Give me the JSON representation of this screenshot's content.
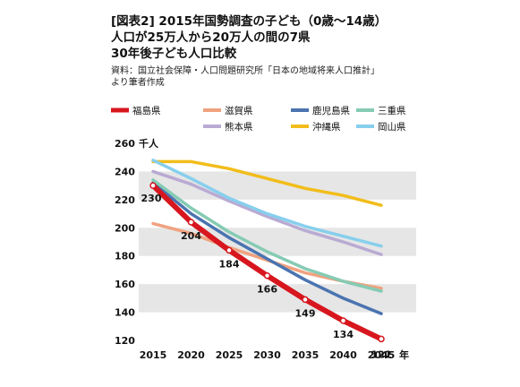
{
  "header": {
    "title_lines": [
      "[図表2] 2015年国勢調査の子ども（0歳〜14歳）",
      "人口が25万人から20万人の間の7県",
      "30年後子ども人口比較"
    ],
    "source_lines": [
      "資料：国立社会保障・人口問題研究所「日本の地域将来人口推計」",
      "より筆者作成"
    ]
  },
  "chart_data": {
    "type": "line",
    "x": [
      2015,
      2020,
      2025,
      2030,
      2035,
      2040,
      2045
    ],
    "x_unit": "年",
    "y_unit": "千人",
    "ylim": [
      120,
      260
    ],
    "yticks": [
      120,
      140,
      160,
      180,
      200,
      220,
      240,
      260
    ],
    "grid": "alternating horizontal bands",
    "legend_position": "top",
    "series": [
      {
        "name": "福島県",
        "color": "#d7161e",
        "values": [
          230,
          204,
          184,
          166,
          149,
          134,
          121
        ],
        "labeled": true
      },
      {
        "name": "滋賀県",
        "color": "#f0a27f",
        "values": [
          203,
          196,
          186,
          177,
          168,
          162,
          157
        ]
      },
      {
        "name": "鹿児島県",
        "color": "#4a74b0",
        "values": [
          232,
          210,
          193,
          178,
          163,
          150,
          139
        ]
      },
      {
        "name": "三重県",
        "color": "#86cbb4",
        "values": [
          234,
          214,
          197,
          183,
          171,
          162,
          155
        ]
      },
      {
        "name": "熊本県",
        "color": "#b9aad3",
        "values": [
          240,
          231,
          219,
          208,
          198,
          190,
          181
        ]
      },
      {
        "name": "沖縄県",
        "color": "#f2bd1b",
        "values": [
          247,
          247,
          242,
          235,
          228,
          223,
          216
        ]
      },
      {
        "name": "岡山県",
        "color": "#87cfed",
        "values": [
          248,
          235,
          221,
          210,
          201,
          194,
          187
        ]
      }
    ]
  }
}
